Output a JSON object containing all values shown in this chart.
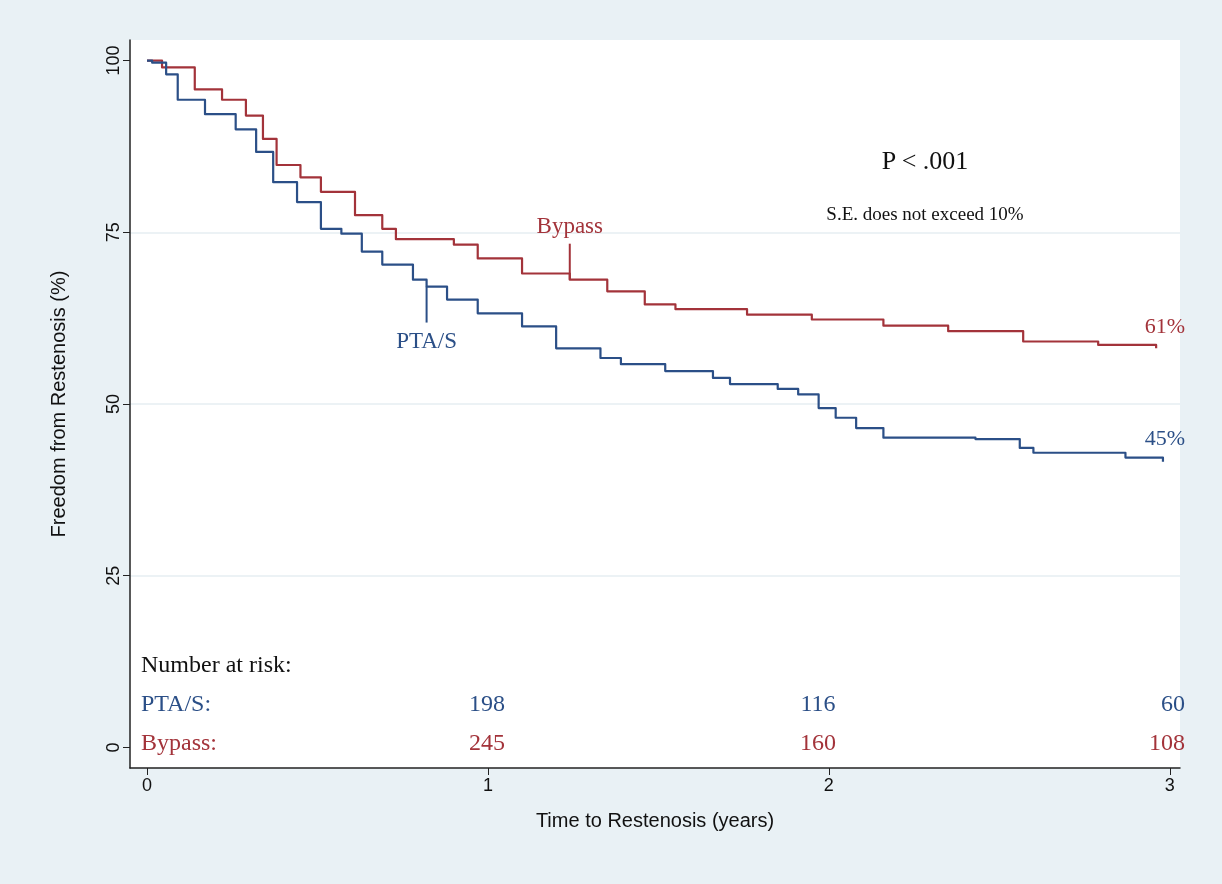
{
  "chart_data": {
    "type": "step",
    "xlabel": "Time to Restenosis (years)",
    "ylabel": "Freedom from Restenosis (%)",
    "xlim": [
      -0.05,
      3.03
    ],
    "xticks": [
      0,
      1,
      2,
      3
    ],
    "ylim": [
      -3,
      103
    ],
    "yticks": [
      0,
      25,
      50,
      75,
      100
    ],
    "grid": "y",
    "marker": "none",
    "line_style": "solid",
    "series": [
      {
        "name": "Bypass",
        "color": "#a3333a",
        "x": [
          0,
          0.044,
          0.14,
          0.22,
          0.29,
          0.34,
          0.38,
          0.45,
          0.51,
          0.61,
          0.69,
          0.73,
          0.9,
          0.97,
          1.1,
          1.24,
          1.35,
          1.46,
          1.55,
          1.76,
          1.95,
          2.16,
          2.35,
          2.57,
          2.79,
          2.96
        ],
        "values": [
          100,
          99,
          95.8,
          94.3,
          92,
          88.6,
          84.8,
          83,
          80.9,
          77.5,
          75.5,
          74,
          73.2,
          71.2,
          69,
          68.1,
          66.4,
          64.5,
          63.8,
          63,
          62.3,
          61.4,
          60.6,
          59.1,
          58.6,
          58.1
        ]
      },
      {
        "name": "PTA/S",
        "color": "#2b4f87",
        "x": [
          0,
          0.015,
          0.056,
          0.09,
          0.17,
          0.26,
          0.32,
          0.37,
          0.44,
          0.51,
          0.57,
          0.63,
          0.69,
          0.78,
          0.82,
          0.88,
          0.97,
          1.1,
          1.2,
          1.33,
          1.39,
          1.52,
          1.66,
          1.71,
          1.85,
          1.91,
          1.97,
          2.02,
          2.08,
          2.16,
          2.43,
          2.56,
          2.6,
          2.87,
          2.98
        ],
        "values": [
          100,
          99.7,
          98,
          94.3,
          92.2,
          90,
          86.7,
          82.3,
          79.4,
          75.5,
          74.8,
          72.2,
          70.3,
          68.1,
          67.1,
          65.2,
          63.2,
          61.3,
          58.1,
          56.7,
          55.8,
          54.8,
          53.8,
          52.9,
          52.2,
          51.4,
          49.4,
          48,
          46.5,
          45.1,
          44.9,
          43.6,
          42.9,
          42.2,
          41.6
        ]
      }
    ],
    "annotations": [
      "P < .001",
      "S.E. does not exceed 10%",
      "61%",
      "45%",
      "Number at risk:",
      "PTA/S:",
      "198",
      "116",
      "60",
      "Bypass:",
      "245",
      "160",
      "108"
    ]
  }
}
